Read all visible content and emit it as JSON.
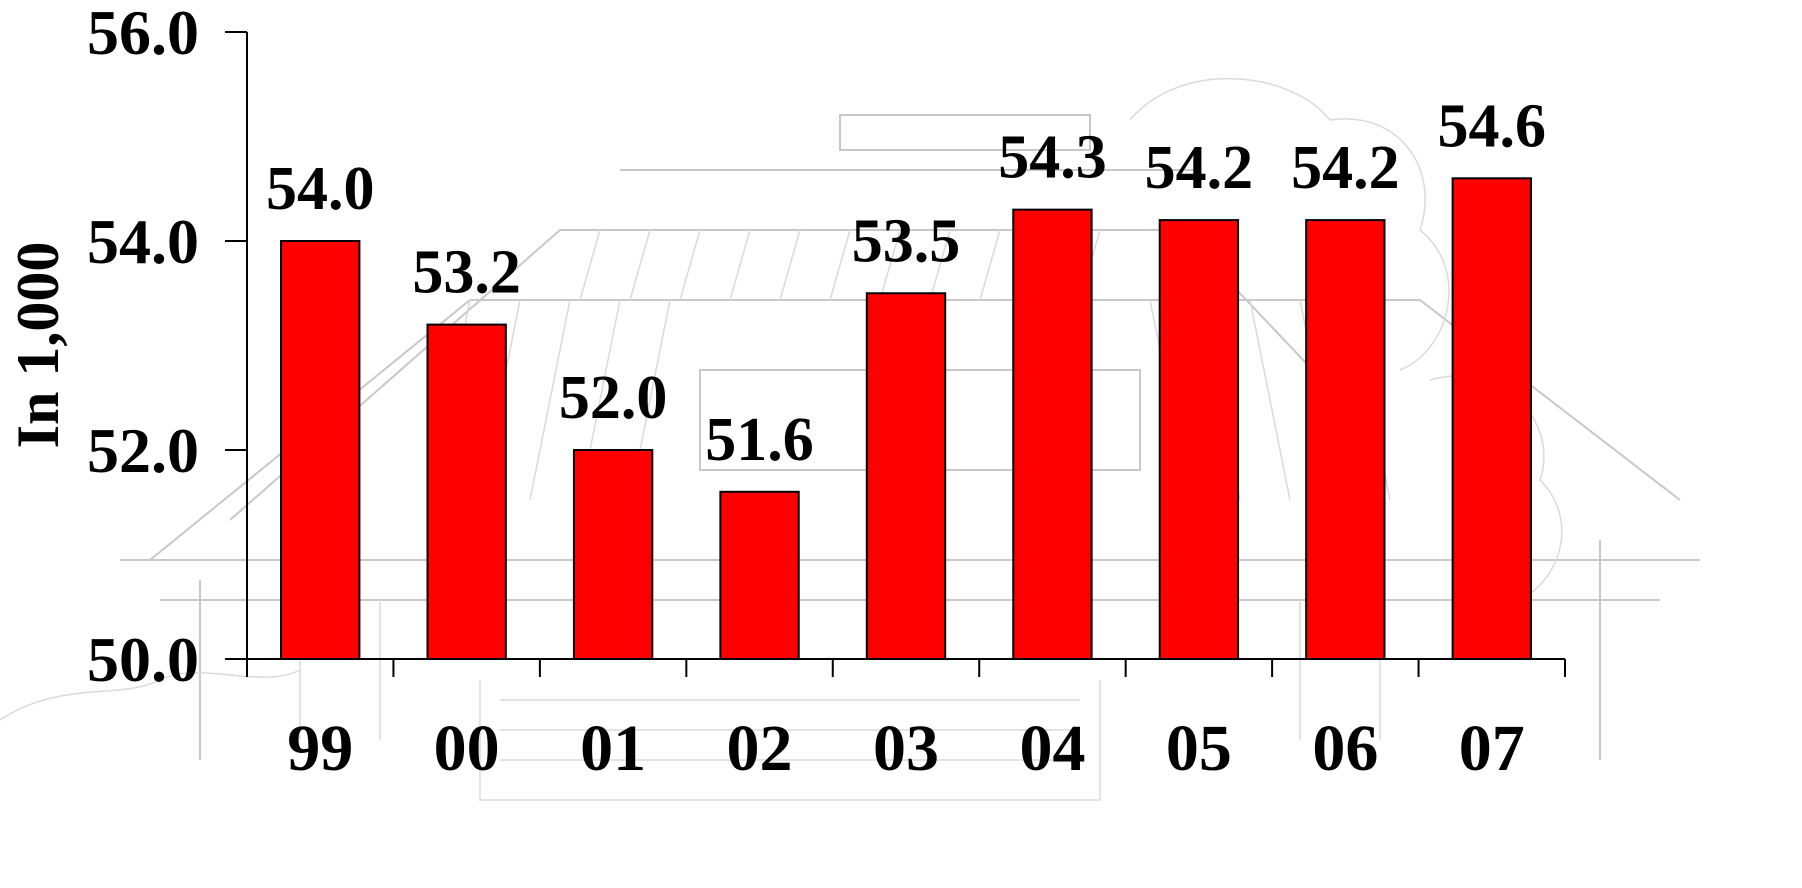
{
  "chart_data": {
    "type": "bar",
    "title": "",
    "xlabel": "",
    "ylabel": "In 1,000",
    "categories": [
      "99",
      "00",
      "01",
      "02",
      "03",
      "04",
      "05",
      "06",
      "07"
    ],
    "values": [
      54.0,
      53.2,
      52.0,
      51.6,
      53.5,
      54.3,
      54.2,
      54.2,
      54.6
    ],
    "data_labels": [
      "54.0",
      "53.2",
      "52.0",
      "51.6",
      "53.5",
      "54.3",
      "54.2",
      "54.2",
      "54.6"
    ],
    "ylim": [
      50.0,
      56.0
    ],
    "yticks": [
      50.0,
      52.0,
      54.0,
      56.0
    ],
    "ytick_labels": [
      "50.0",
      "52.0",
      "54.0",
      "56.0"
    ],
    "grid": false,
    "legend": "none",
    "bar_color": "#ff0000",
    "bar_edge_color": "#000000",
    "background_image": "building-sketch"
  }
}
